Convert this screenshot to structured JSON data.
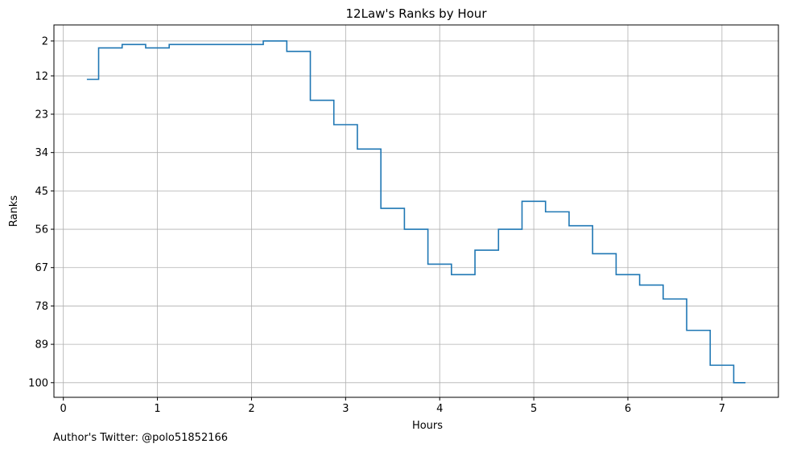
{
  "chart_data": {
    "type": "line",
    "drawstyle": "steps-mid",
    "title": "12Law's Ranks by Hour",
    "xlabel": "Hours",
    "ylabel": "Ranks",
    "xlim": [
      -0.1,
      7.6
    ],
    "ylim": [
      104.2,
      -2.6
    ],
    "y_inverted": true,
    "grid": true,
    "line_color": "#1f77b4",
    "xticks": [
      0,
      1,
      2,
      3,
      4,
      5,
      6,
      7
    ],
    "yticks": [
      2,
      12,
      23,
      34,
      45,
      56,
      67,
      78,
      89,
      100
    ],
    "series": [
      {
        "x": [
          0.25,
          0.5,
          0.75,
          1.0,
          1.25,
          1.5,
          1.75,
          2.0,
          2.25,
          2.5,
          2.75,
          3.0,
          3.25,
          3.5,
          3.75,
          4.0,
          4.25,
          4.5,
          4.75,
          5.0,
          5.25,
          5.5,
          5.75,
          6.0,
          6.25,
          6.5,
          6.75,
          7.0,
          7.25
        ],
        "y": [
          13,
          4,
          3,
          4,
          3,
          3,
          3,
          3,
          2,
          5,
          19,
          26,
          33,
          50,
          56,
          66,
          69,
          62,
          56,
          48,
          51,
          55,
          63,
          69,
          72,
          76,
          85,
          95,
          100
        ]
      }
    ]
  },
  "footer": {
    "credit": "Author's Twitter: @polo51852166"
  }
}
